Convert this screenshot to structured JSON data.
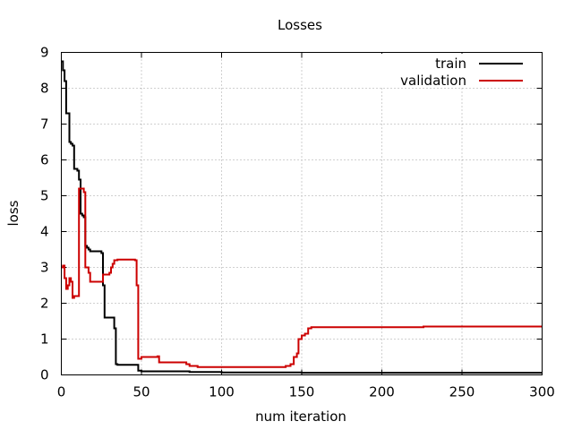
{
  "chart_data": {
    "type": "line",
    "title": "Losses",
    "xlabel": "num iteration",
    "ylabel": "loss",
    "xlim": [
      0,
      300
    ],
    "ylim": [
      0,
      9
    ],
    "grid": true,
    "legend_position": "top-right",
    "x_ticks": [
      "0",
      "50",
      "100",
      "150",
      "200",
      "250",
      "300"
    ],
    "y_ticks": [
      "0",
      "1",
      "2",
      "3",
      "4",
      "5",
      "6",
      "7",
      "8",
      "9"
    ],
    "series": [
      {
        "name": "train",
        "color": "#000000",
        "x": [
          0,
          1,
          2,
          3,
          4,
          5,
          6,
          7,
          8,
          9,
          10,
          11,
          12,
          13,
          14,
          15,
          16,
          17,
          18,
          20,
          22,
          24,
          25,
          26,
          27,
          28,
          30,
          32,
          33,
          34,
          35,
          40,
          45,
          47,
          48,
          50,
          60,
          70,
          80,
          100,
          150,
          200,
          250,
          300
        ],
        "y": [
          8.75,
          8.5,
          8.2,
          7.3,
          7.3,
          6.5,
          6.45,
          6.4,
          5.75,
          5.75,
          5.7,
          5.45,
          4.5,
          4.45,
          4.4,
          3.6,
          3.55,
          3.5,
          3.45,
          3.45,
          3.45,
          3.45,
          3.4,
          2.5,
          1.6,
          1.6,
          1.6,
          1.6,
          1.3,
          0.3,
          0.28,
          0.28,
          0.28,
          0.28,
          0.12,
          0.1,
          0.1,
          0.1,
          0.08,
          0.07,
          0.06,
          0.06,
          0.06,
          0.06
        ]
      },
      {
        "name": "validation",
        "color": "#cc0000",
        "x": [
          0,
          1,
          2,
          3,
          4,
          5,
          6,
          7,
          8,
          10,
          11,
          12,
          13,
          14,
          15,
          16,
          17,
          18,
          20,
          22,
          24,
          25,
          26,
          27,
          28,
          30,
          31,
          32,
          33,
          35,
          40,
          45,
          46,
          47,
          48,
          50,
          55,
          60,
          61,
          70,
          75,
          78,
          80,
          85,
          100,
          110,
          120,
          138,
          140,
          142,
          143,
          145,
          147,
          148,
          150,
          152,
          154,
          156,
          170,
          200,
          225,
          226,
          250,
          300
        ],
        "y": [
          3.0,
          3.05,
          2.7,
          2.4,
          2.5,
          2.7,
          2.6,
          2.15,
          2.2,
          2.2,
          5.2,
          5.2,
          5.2,
          5.1,
          3.0,
          3.0,
          2.85,
          2.6,
          2.6,
          2.6,
          2.6,
          2.6,
          2.8,
          2.8,
          2.8,
          2.85,
          3.0,
          3.1,
          3.2,
          3.22,
          3.22,
          3.22,
          3.2,
          2.5,
          0.45,
          0.5,
          0.5,
          0.52,
          0.35,
          0.35,
          0.35,
          0.3,
          0.25,
          0.22,
          0.22,
          0.22,
          0.22,
          0.22,
          0.25,
          0.25,
          0.3,
          0.5,
          0.6,
          1.0,
          1.1,
          1.15,
          1.3,
          1.33,
          1.33,
          1.33,
          1.33,
          1.35,
          1.35,
          1.35
        ]
      }
    ]
  }
}
